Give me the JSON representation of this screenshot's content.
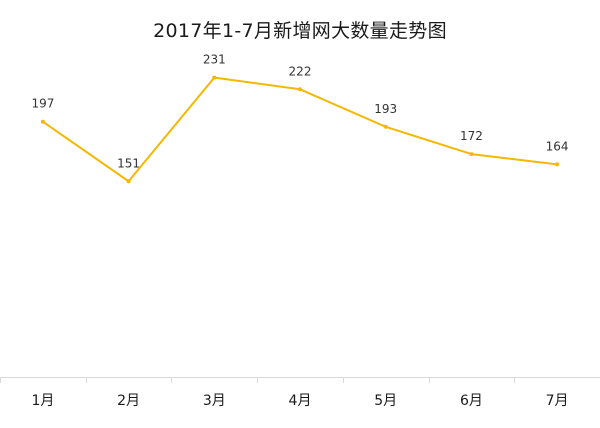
{
  "chart_data": {
    "type": "line",
    "title": "2017年1-7月新增网大数量走势图",
    "categories": [
      "1月",
      "2月",
      "3月",
      "4月",
      "5月",
      "6月",
      "7月"
    ],
    "series": [
      {
        "values": [
          197,
          151,
          231,
          222,
          193,
          172,
          164
        ],
        "color": "#F5B800"
      }
    ],
    "data_labels": true,
    "grid": false,
    "legend": "none",
    "ylim": [
      0,
      260
    ],
    "xlabel": "",
    "ylabel": ""
  }
}
